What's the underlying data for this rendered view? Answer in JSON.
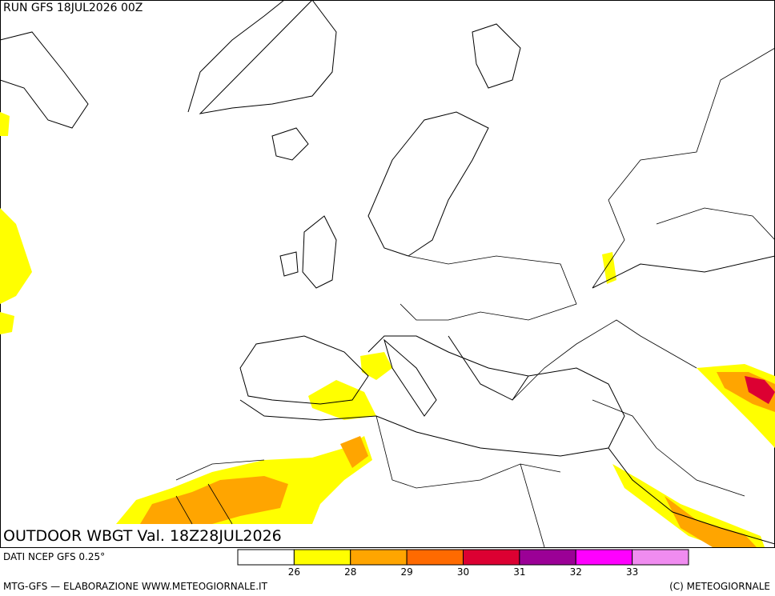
{
  "header": {
    "run": "RUN GFS 18JUL2026 00Z"
  },
  "map": {
    "title": "OUTDOOR WBGT Val. 18Z28JUL2026"
  },
  "legend": {
    "colors": [
      "#ffffff",
      "#ffff00",
      "#ffa500",
      "#ff6a00",
      "#dc0032",
      "#9b0096",
      "#ff00ff",
      "#f08cf0"
    ],
    "ticks": [
      26,
      28,
      29,
      30,
      31,
      32,
      33
    ]
  },
  "footer": {
    "source": "DATI NCEP GFS 0.25°",
    "credit": "MTG-GFS — ELABORAZIONE WWW.METEOGIORNALE.IT",
    "copyright": "(C) METEOGIORNALE"
  }
}
